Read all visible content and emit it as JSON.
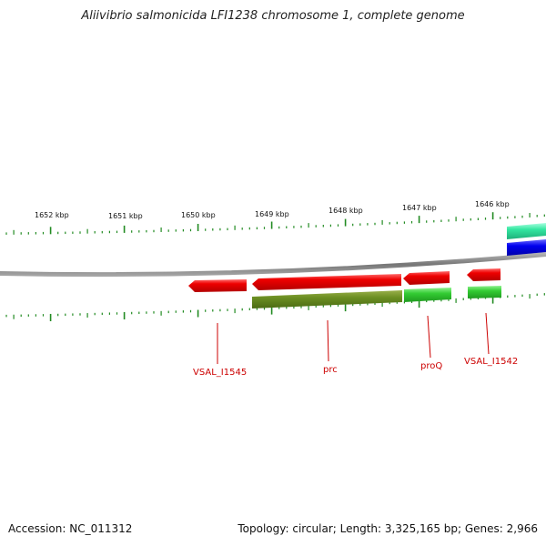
{
  "title": "Aliivibrio salmonicida LFI1238 chromosome 1, complete genome",
  "footer": {
    "accession": "Accession: NC_011312",
    "summary": "Topology: circular; Length: 3,325,165 bp; Genes: 2,966"
  },
  "ruler": {
    "labels": [
      "1652 kbp",
      "1651 kbp",
      "1650 kbp",
      "1649 kbp",
      "1648 kbp",
      "1647 kbp",
      "1646 kbp"
    ]
  },
  "genes": {
    "labels": [
      "VSAL_I1545",
      "prc",
      "proQ",
      "VSAL_I1542"
    ]
  },
  "colors": {
    "forward_gene": "#e60000",
    "cds_olive": "#6b8e23",
    "cds_green": "#33cc33",
    "teal": "#33e6a0",
    "blue": "#0000ee",
    "backbone": "#888888",
    "tick": "#228b22",
    "label": "#cc0000"
  }
}
